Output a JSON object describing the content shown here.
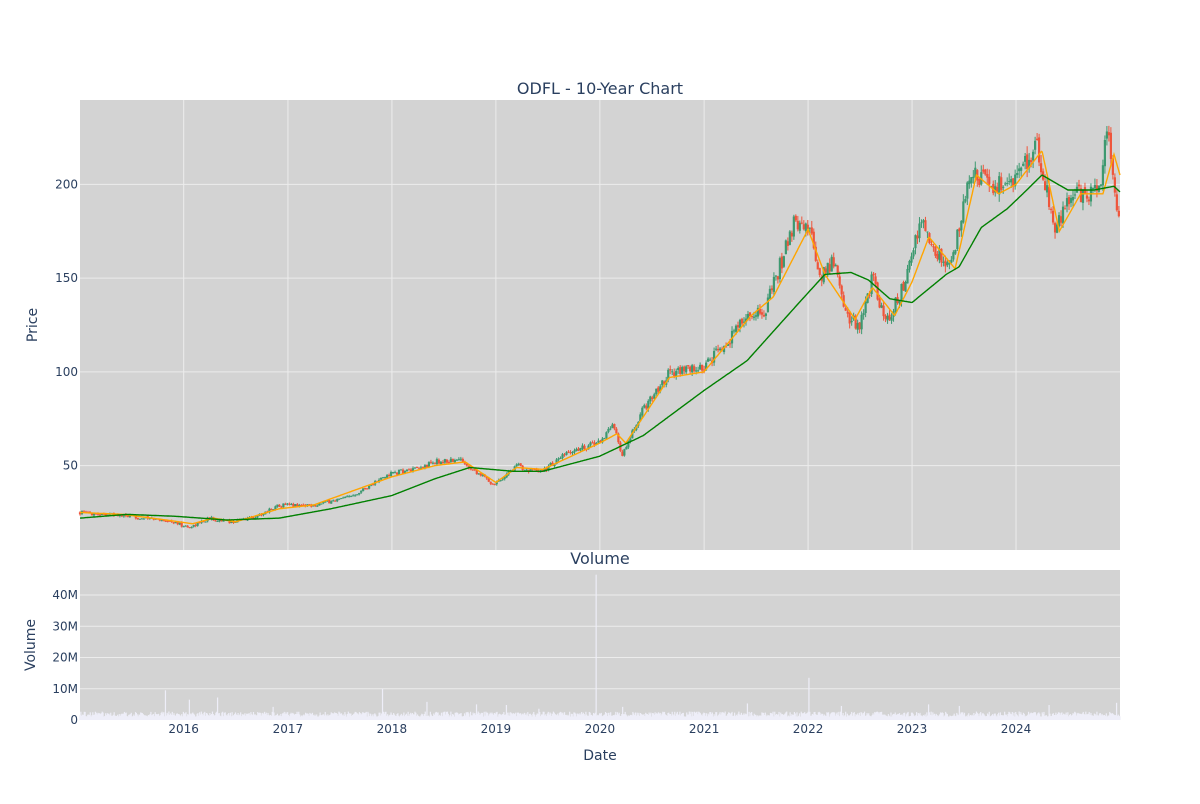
{
  "chart_data": [
    {
      "type": "candlestick",
      "title": "ODFL - 10-Year Chart",
      "ylabel": "Price",
      "xlabel": "",
      "x_range": [
        "2015-01-02",
        "2024-12-31"
      ],
      "ylim": [
        5,
        245
      ],
      "y_ticks": [
        50,
        100,
        150,
        200
      ],
      "grid": true,
      "legend": "none",
      "colors": {
        "background": "#d3d3d3",
        "grid": "#ececec",
        "up": "#3d9970",
        "down": "#ef553b",
        "ma_short": "#ffa500",
        "ma_long": "#008000",
        "text": "#2a3f5f"
      },
      "price_keypoints": [
        [
          "2015-01-02",
          25
        ],
        [
          "2015-04-15",
          24
        ],
        [
          "2015-08-15",
          22
        ],
        [
          "2015-11-01",
          21
        ],
        [
          "2016-01-20",
          17
        ],
        [
          "2016-04-01",
          22
        ],
        [
          "2016-06-15",
          20
        ],
        [
          "2016-09-15",
          23
        ],
        [
          "2016-12-01",
          29
        ],
        [
          "2017-04-01",
          29
        ],
        [
          "2017-08-01",
          33
        ],
        [
          "2017-12-31",
          46
        ],
        [
          "2018-04-01",
          48
        ],
        [
          "2018-06-01",
          52
        ],
        [
          "2018-09-01",
          53
        ],
        [
          "2018-12-25",
          40
        ],
        [
          "2019-03-15",
          50
        ],
        [
          "2019-06-01",
          46
        ],
        [
          "2019-09-15",
          57
        ],
        [
          "2019-12-31",
          63
        ],
        [
          "2020-02-20",
          72
        ],
        [
          "2020-03-20",
          55
        ],
        [
          "2020-06-01",
          80
        ],
        [
          "2020-09-01",
          100
        ],
        [
          "2020-12-31",
          102
        ],
        [
          "2021-03-15",
          115
        ],
        [
          "2021-06-01",
          130
        ],
        [
          "2021-08-01",
          132
        ],
        [
          "2021-11-15",
          180
        ],
        [
          "2022-01-01",
          178
        ],
        [
          "2022-02-15",
          150
        ],
        [
          "2022-04-01",
          160
        ],
        [
          "2022-05-15",
          130
        ],
        [
          "2022-07-01",
          125
        ],
        [
          "2022-08-15",
          150
        ],
        [
          "2022-10-01",
          125
        ],
        [
          "2022-12-01",
          145
        ],
        [
          "2023-02-01",
          180
        ],
        [
          "2023-03-15",
          165
        ],
        [
          "2023-05-15",
          155
        ],
        [
          "2023-08-01",
          208
        ],
        [
          "2023-10-01",
          200
        ],
        [
          "2023-12-15",
          200
        ],
        [
          "2024-03-15",
          220
        ],
        [
          "2024-05-15",
          175
        ],
        [
          "2024-07-15",
          195
        ],
        [
          "2024-10-15",
          195
        ],
        [
          "2024-11-15",
          228
        ],
        [
          "2024-12-31",
          177
        ]
      ],
      "ma_short_keypoints": [
        [
          "2015-01-02",
          25
        ],
        [
          "2015-06-01",
          24
        ],
        [
          "2015-11-01",
          21
        ],
        [
          "2016-02-01",
          19
        ],
        [
          "2016-04-15",
          22
        ],
        [
          "2016-07-01",
          20
        ],
        [
          "2016-12-01",
          27
        ],
        [
          "2017-04-01",
          29
        ],
        [
          "2017-12-31",
          44
        ],
        [
          "2018-06-01",
          50
        ],
        [
          "2018-09-15",
          52
        ],
        [
          "2019-01-01",
          41
        ],
        [
          "2019-03-15",
          49
        ],
        [
          "2019-06-15",
          48
        ],
        [
          "2019-12-31",
          62
        ],
        [
          "2020-03-01",
          67
        ],
        [
          "2020-04-01",
          62
        ],
        [
          "2020-09-01",
          97
        ],
        [
          "2020-12-31",
          100
        ],
        [
          "2021-06-15",
          130
        ],
        [
          "2021-09-01",
          140
        ],
        [
          "2022-01-01",
          176
        ],
        [
          "2022-03-01",
          152
        ],
        [
          "2022-06-15",
          128
        ],
        [
          "2022-08-15",
          145
        ],
        [
          "2022-11-01",
          130
        ],
        [
          "2023-01-01",
          148
        ],
        [
          "2023-03-01",
          172
        ],
        [
          "2023-06-01",
          155
        ],
        [
          "2023-08-15",
          205
        ],
        [
          "2023-11-01",
          195
        ],
        [
          "2024-01-01",
          200
        ],
        [
          "2024-04-01",
          218
        ],
        [
          "2024-06-01",
          175
        ],
        [
          "2024-08-15",
          195
        ],
        [
          "2024-11-01",
          195
        ],
        [
          "2024-12-10",
          216
        ],
        [
          "2024-12-31",
          205
        ]
      ],
      "ma_long_keypoints": [
        [
          "2015-01-02",
          22
        ],
        [
          "2015-06-15",
          24
        ],
        [
          "2015-12-01",
          23
        ],
        [
          "2016-06-01",
          21
        ],
        [
          "2016-12-01",
          22
        ],
        [
          "2017-06-01",
          27
        ],
        [
          "2017-12-31",
          34
        ],
        [
          "2018-06-01",
          43
        ],
        [
          "2018-10-01",
          49
        ],
        [
          "2019-03-01",
          47
        ],
        [
          "2019-06-15",
          47
        ],
        [
          "2019-12-31",
          55
        ],
        [
          "2020-06-01",
          66
        ],
        [
          "2020-12-31",
          90
        ],
        [
          "2021-06-01",
          106
        ],
        [
          "2021-12-01",
          137
        ],
        [
          "2022-03-01",
          152
        ],
        [
          "2022-06-01",
          153
        ],
        [
          "2022-08-01",
          149
        ],
        [
          "2022-10-15",
          139
        ],
        [
          "2023-01-01",
          137
        ],
        [
          "2023-05-01",
          152
        ],
        [
          "2023-06-15",
          156
        ],
        [
          "2023-09-01",
          177
        ],
        [
          "2023-12-01",
          187
        ],
        [
          "2024-02-01",
          196
        ],
        [
          "2024-04-01",
          205
        ],
        [
          "2024-07-01",
          197
        ],
        [
          "2024-10-01",
          197
        ],
        [
          "2024-12-10",
          199
        ],
        [
          "2024-12-31",
          196
        ]
      ]
    },
    {
      "type": "bar",
      "title": "Volume",
      "ylabel": "Volume",
      "xlabel": "Date",
      "ylim": [
        0,
        48000000
      ],
      "y_ticks": [
        0,
        10000000,
        20000000,
        30000000,
        40000000
      ],
      "y_tick_labels": [
        "0",
        "10M",
        "20M",
        "30M",
        "40M"
      ],
      "x_ticks": [
        "2016-01-01",
        "2017-01-01",
        "2018-01-01",
        "2019-01-01",
        "2020-01-01",
        "2021-01-01",
        "2022-01-01",
        "2023-01-01",
        "2024-01-01"
      ],
      "x_tick_labels": [
        "2016",
        "2017",
        "2018",
        "2019",
        "2020",
        "2021",
        "2022",
        "2023",
        "2024"
      ],
      "grid": true,
      "colors": {
        "bars": "#eeeef8",
        "background": "#d3d3d3"
      },
      "baseline_volume": 1800000,
      "volume_spikes": [
        [
          "2015-10-28",
          9500000
        ],
        [
          "2016-01-20",
          6500000
        ],
        [
          "2016-04-28",
          7200000
        ],
        [
          "2016-11-10",
          4200000
        ],
        [
          "2017-11-28",
          10000000
        ],
        [
          "2018-05-03",
          5800000
        ],
        [
          "2018-10-25",
          5000000
        ],
        [
          "2019-02-07",
          4800000
        ],
        [
          "2019-06-01",
          3600000
        ],
        [
          "2019-12-20",
          46500000
        ],
        [
          "2020-03-20",
          4200000
        ],
        [
          "2021-06-01",
          5300000
        ],
        [
          "2022-01-03",
          13500000
        ],
        [
          "2022-04-28",
          4500000
        ],
        [
          "2023-03-01",
          5000000
        ],
        [
          "2023-06-15",
          4500000
        ],
        [
          "2024-04-25",
          4800000
        ],
        [
          "2024-12-20",
          5500000
        ]
      ]
    }
  ]
}
